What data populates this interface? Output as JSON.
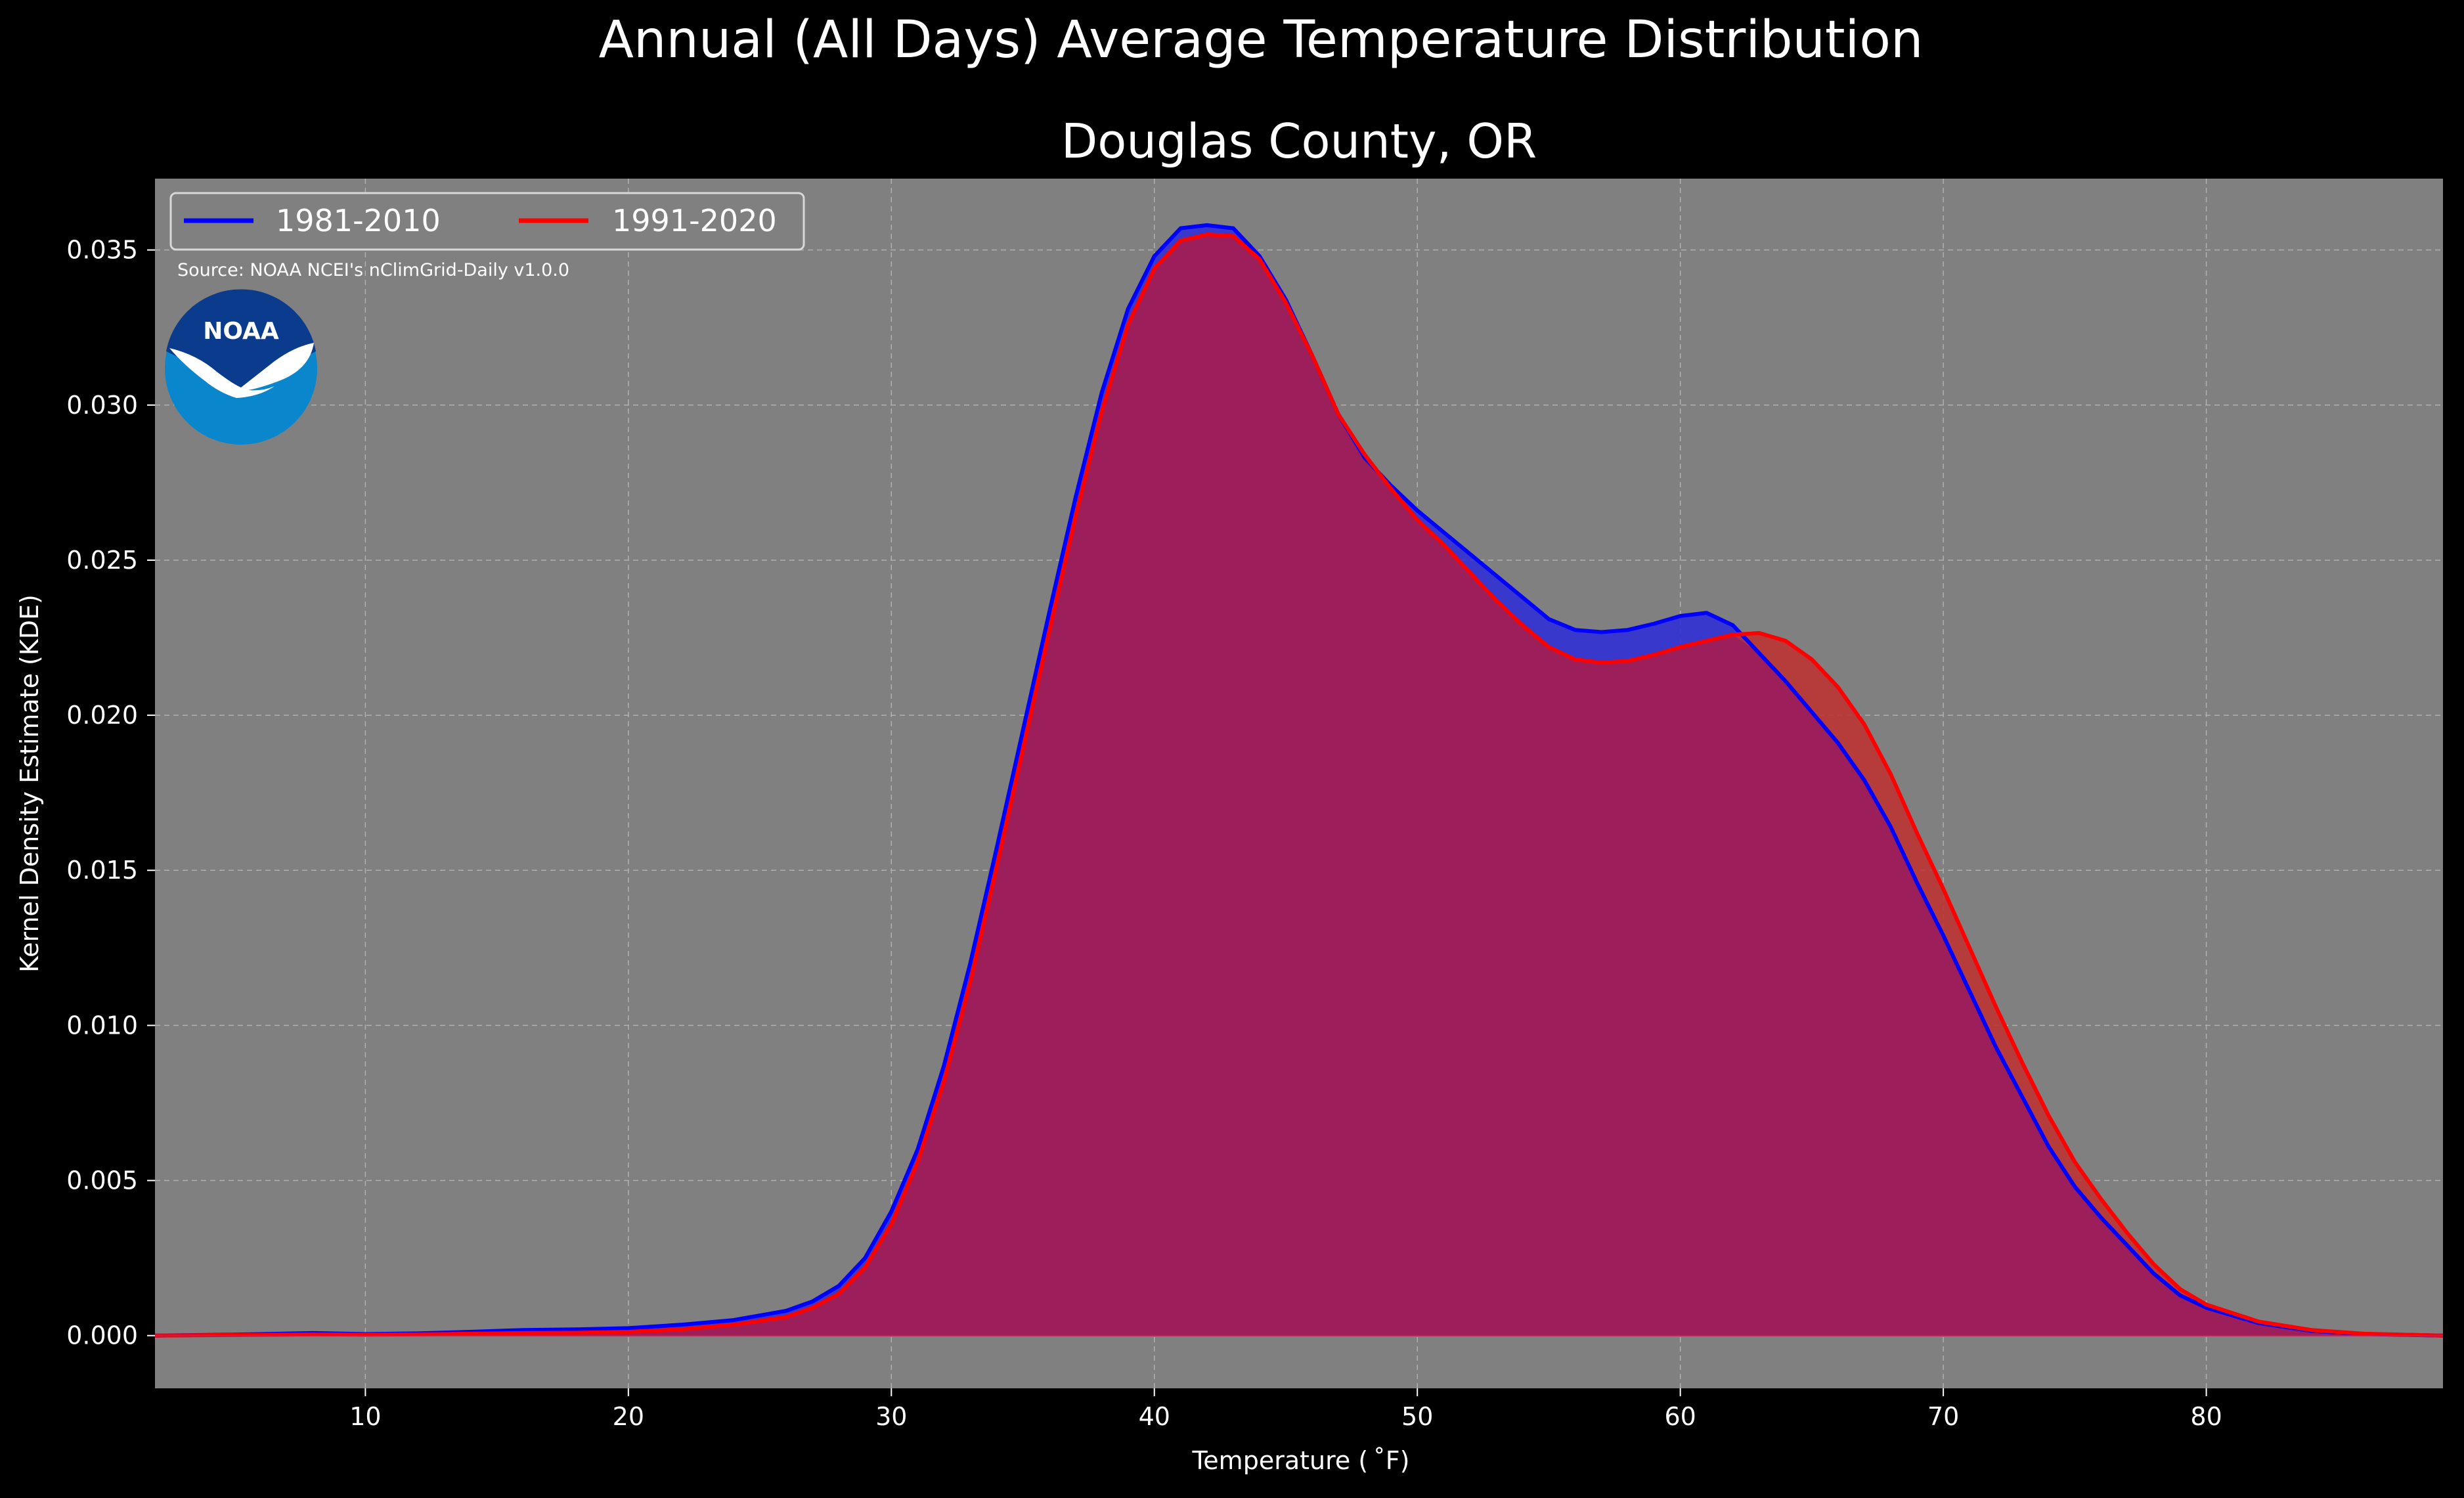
{
  "chart_data": {
    "type": "area",
    "title": "Annual (All Days) Average Temperature Distribution",
    "subtitle": "Douglas County, OR",
    "xlabel": "Temperature ($^\\circ$F)",
    "xlabel_display": "Temperature ( ˚F)",
    "ylabel": "Kernel Density Estimate (KDE)",
    "xlim": [
      2,
      89
    ],
    "ylim": [
      -0.0017,
      0.0373
    ],
    "x_ticks": [
      10,
      20,
      30,
      40,
      50,
      60,
      70,
      80
    ],
    "x_tick_labels": [
      "10",
      "20",
      "30",
      "40",
      "50",
      "60",
      "70",
      "80"
    ],
    "y_ticks": [
      0.0,
      0.005,
      0.01,
      0.015,
      0.02,
      0.025,
      0.03,
      0.035
    ],
    "y_tick_labels": [
      "0.000",
      "0.005",
      "0.010",
      "0.015",
      "0.020",
      "0.025",
      "0.030",
      "0.035"
    ],
    "grid": true,
    "legend_placement": "top-left",
    "source_note": "Source: NOAA NCEI's nClimGrid-Daily v1.0.0",
    "logo_text": "NOAA",
    "colors": {
      "figure_bg": "#000000",
      "axes_bg": "#808080",
      "text": "#ffffff",
      "grid": "#b0b0b0",
      "fill_overlap": "#9c1f5c",
      "noaa_dark": "#0b3b8c",
      "noaa_light": "#0a86cc"
    },
    "x": [
      2,
      5,
      8,
      10,
      12,
      14,
      16,
      18,
      20,
      22,
      24,
      26,
      27,
      28,
      29,
      30,
      31,
      32,
      33,
      34,
      35,
      36,
      37,
      38,
      39,
      40,
      41,
      42,
      43,
      44,
      45,
      46,
      47,
      48,
      49,
      50,
      51,
      52,
      53,
      54,
      55,
      56,
      57,
      58,
      59,
      60,
      61,
      62,
      63,
      64,
      65,
      66,
      67,
      68,
      69,
      70,
      71,
      72,
      73,
      74,
      75,
      76,
      77,
      78,
      79,
      80,
      82,
      84,
      86,
      89
    ],
    "series": [
      {
        "name": "1981-2010",
        "color": "#0000ff",
        "fill": "#2b2bd9",
        "values": [
          0.0,
          3e-05,
          8e-05,
          5e-05,
          7e-05,
          0.00012,
          0.00018,
          0.0002,
          0.00024,
          0.00035,
          0.0005,
          0.0008,
          0.0011,
          0.0016,
          0.0025,
          0.004,
          0.006,
          0.0087,
          0.012,
          0.0157,
          0.0195,
          0.0233,
          0.027,
          0.0304,
          0.0331,
          0.0348,
          0.0357,
          0.0358,
          0.0357,
          0.0348,
          0.0334,
          0.0316,
          0.0297,
          0.0283,
          0.0274,
          0.0266,
          0.0259,
          0.0252,
          0.0245,
          0.0238,
          0.0231,
          0.02275,
          0.02268,
          0.02275,
          0.02295,
          0.0232,
          0.0233,
          0.0229,
          0.022,
          0.0211,
          0.0201,
          0.0191,
          0.0179,
          0.0164,
          0.0146,
          0.0129,
          0.0111,
          0.0093,
          0.0077,
          0.0061,
          0.0048,
          0.0038,
          0.0029,
          0.002,
          0.0013,
          0.0009,
          0.0004,
          0.00015,
          5e-05,
          0.0
        ]
      },
      {
        "name": "1991-2020",
        "color": "#ff0000",
        "fill": "#c0302f",
        "values": [
          0.0,
          2e-05,
          4e-05,
          3e-05,
          4e-05,
          6e-05,
          8e-05,
          9e-05,
          0.00012,
          0.0002,
          0.00035,
          0.0006,
          0.0009,
          0.00135,
          0.0022,
          0.0036,
          0.0056,
          0.0082,
          0.0114,
          0.0151,
          0.0189,
          0.0227,
          0.0264,
          0.0298,
          0.0326,
          0.0344,
          0.0353,
          0.0355,
          0.03545,
          0.0347,
          0.0333,
          0.0316,
          0.0297,
          0.0284,
          0.0273,
          0.0263,
          0.0255,
          0.0246,
          0.0237,
          0.0229,
          0.0222,
          0.0218,
          0.0217,
          0.02175,
          0.02195,
          0.0222,
          0.0224,
          0.0226,
          0.02265,
          0.0224,
          0.0218,
          0.0209,
          0.0197,
          0.0181,
          0.0162,
          0.0144,
          0.0125,
          0.0106,
          0.0088,
          0.0071,
          0.0056,
          0.0044,
          0.0033,
          0.0023,
          0.0015,
          0.001,
          0.00045,
          0.00018,
          6e-05,
          0.0
        ]
      }
    ]
  }
}
